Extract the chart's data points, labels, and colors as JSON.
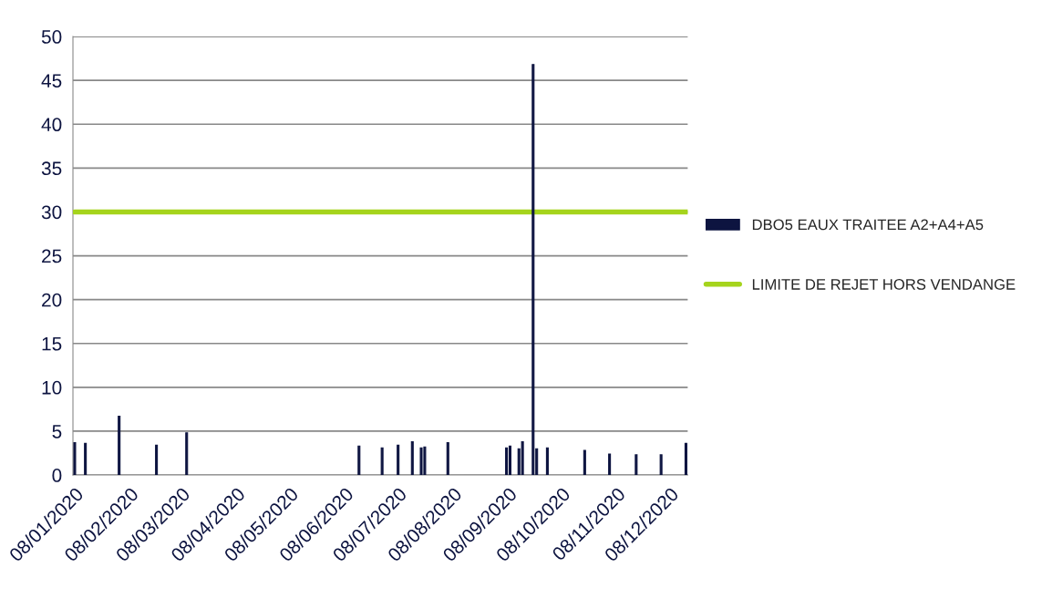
{
  "chart_data": {
    "type": "bar",
    "xlim": [
      "2020-01-07",
      "2020-12-18"
    ],
    "xticks": [
      {
        "value": "2020-01-08",
        "label": "08/01/2020"
      },
      {
        "value": "2020-02-08",
        "label": "08/02/2020"
      },
      {
        "value": "2020-03-08",
        "label": "08/03/2020"
      },
      {
        "value": "2020-04-08",
        "label": "08/04/2020"
      },
      {
        "value": "2020-05-08",
        "label": "08/05/2020"
      },
      {
        "value": "2020-06-08",
        "label": "08/06/2020"
      },
      {
        "value": "2020-07-08",
        "label": "08/07/2020"
      },
      {
        "value": "2020-08-08",
        "label": "08/08/2020"
      },
      {
        "value": "2020-09-08",
        "label": "08/09/2020"
      },
      {
        "value": "2020-10-08",
        "label": "08/10/2020"
      },
      {
        "value": "2020-11-08",
        "label": "08/11/2020"
      },
      {
        "value": "2020-12-08",
        "label": "08/12/2020"
      }
    ],
    "ylim": [
      0,
      50
    ],
    "yticks": [
      0,
      5,
      10,
      15,
      20,
      25,
      30,
      35,
      40,
      45,
      50
    ],
    "grid": "y",
    "legend": "right",
    "series": [
      {
        "name": "DBO5 EAUX TRAITEE A2+A4+A5",
        "color": "#0d1440",
        "x": [
          "2020-01-08",
          "2020-01-14",
          "2020-02-02",
          "2020-02-23",
          "2020-03-11",
          "2020-06-16",
          "2020-06-29",
          "2020-07-08",
          "2020-07-16",
          "2020-07-21",
          "2020-07-23",
          "2020-08-05",
          "2020-09-07",
          "2020-09-09",
          "2020-09-14",
          "2020-09-16",
          "2020-09-22",
          "2020-09-24",
          "2020-09-30",
          "2020-10-21",
          "2020-11-04",
          "2020-11-19",
          "2020-12-03",
          "2020-12-17"
        ],
        "values": [
          3.7,
          3.6,
          6.7,
          3.4,
          4.8,
          3.3,
          3.1,
          3.4,
          3.8,
          3.1,
          3.2,
          3.7,
          3.1,
          3.3,
          3.0,
          3.8,
          46.8,
          3.0,
          3.1,
          2.8,
          2.4,
          2.3,
          2.3,
          3.6
        ]
      },
      {
        "name": "LIMITE DE REJET HORS VENDANGE",
        "type": "line",
        "color": "#a5d41c",
        "line_style": "solid",
        "marker": "none",
        "x": [
          "2020-01-08",
          "2020-12-18"
        ],
        "values": [
          30,
          30
        ]
      }
    ]
  }
}
